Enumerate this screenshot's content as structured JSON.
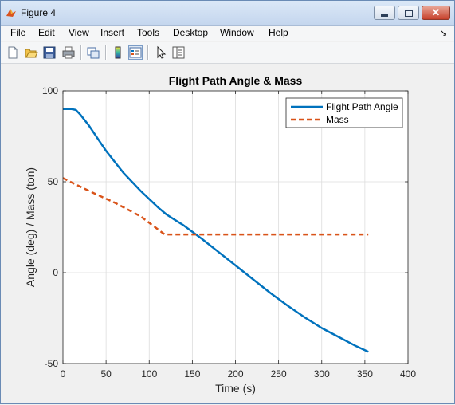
{
  "window": {
    "title": "Figure 4"
  },
  "menu": {
    "items": [
      "File",
      "Edit",
      "View",
      "Insert",
      "Tools",
      "Desktop",
      "Window",
      "Help"
    ],
    "overflow_icon": "arrow-icon"
  },
  "toolbar": {
    "tools": [
      "new-figure-icon",
      "open-file-icon",
      "save-icon",
      "print-icon",
      "link-plot-icon",
      "insert-colorbar-icon",
      "insert-legend-icon",
      "edit-plot-icon",
      "property-inspector-icon"
    ]
  },
  "colors": {
    "angle": "#0072bd",
    "mass": "#d95319",
    "grid": "#dcdcdc"
  },
  "chart_data": {
    "type": "line",
    "title": "Flight Path Angle & Mass",
    "xlabel": "Time (s)",
    "ylabel": "Angle (deg) / Mass (ton)",
    "xlim": [
      0,
      400
    ],
    "ylim": [
      -50,
      100
    ],
    "xticks": [
      0,
      50,
      100,
      150,
      200,
      250,
      300,
      350,
      400
    ],
    "yticks": [
      -50,
      0,
      50,
      100
    ],
    "grid": true,
    "legend_position": "top-right",
    "series": [
      {
        "name": "Flight Path Angle",
        "style": "solid",
        "x": [
          0,
          10,
          15,
          20,
          30,
          40,
          50,
          60,
          70,
          80,
          90,
          100,
          110,
          120,
          130,
          140,
          150,
          160,
          180,
          200,
          220,
          240,
          260,
          280,
          300,
          320,
          340,
          354
        ],
        "y": [
          90,
          90,
          89.5,
          87,
          81,
          74,
          67,
          61,
          55,
          50,
          45,
          40.5,
          36,
          32,
          29,
          26,
          22.5,
          19,
          11.5,
          4,
          -3.5,
          -11,
          -18,
          -24.5,
          -30.5,
          -35.5,
          -40.5,
          -43.5
        ]
      },
      {
        "name": "Mass",
        "style": "dashed",
        "x": [
          0,
          30,
          60,
          90,
          118,
          150,
          200,
          250,
          300,
          354
        ],
        "y": [
          52,
          45,
          38.5,
          31,
          21,
          21,
          21,
          21,
          21,
          21
        ]
      }
    ]
  }
}
